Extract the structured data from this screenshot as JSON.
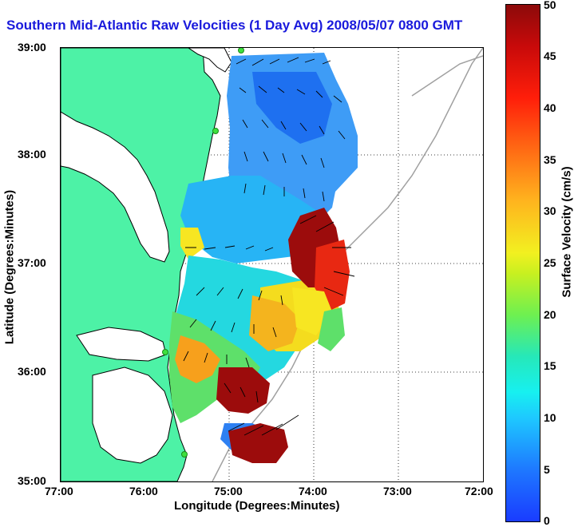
{
  "title": "Southern Mid-Atlantic Raw Velocities (1 Day Avg) 2008/05/07 0800 GMT",
  "axes": {
    "xlabel": "Longitude (Degrees:Minutes)",
    "ylabel": "Latitude (Degrees:Minutes)",
    "xticks": [
      "77:00",
      "76:00",
      "75:00",
      "74:00",
      "73:00",
      "72:00"
    ],
    "yticks": [
      "39:00",
      "38:00",
      "37:00",
      "36:00",
      "35:00"
    ]
  },
  "colorbar": {
    "label": "Surface Velocity (cm/s)",
    "ticks": [
      "50",
      "45",
      "40",
      "35",
      "30",
      "25",
      "20",
      "15",
      "10",
      "5",
      "0"
    ],
    "min": 0,
    "max": 50
  },
  "colors": {
    "land": "#4df2a6",
    "coast": "#000000",
    "bathymetry": "#a0a0a0",
    "station": "#3ee03e",
    "title": "#1a1adc"
  }
}
